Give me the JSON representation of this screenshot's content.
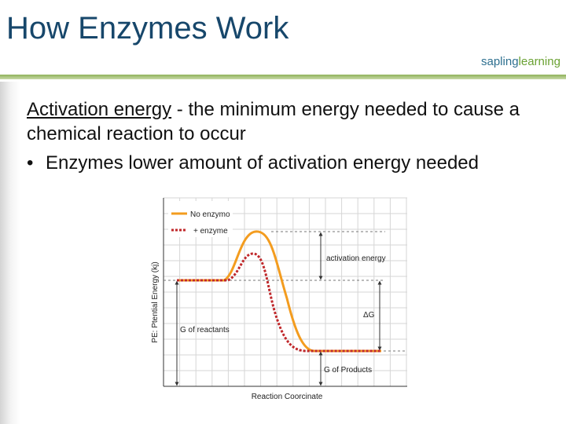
{
  "slide": {
    "title": "How Enzymes Work",
    "logo": {
      "left": "sapling",
      "right": "learning"
    }
  },
  "body": {
    "term": "Activation energy",
    "definition": "  - the minimum energy needed to cause a chemical reaction to occur",
    "bullets": [
      "Enzymes lower amount of activation energy needed"
    ]
  },
  "figure": {
    "legend": [
      "No enzymo",
      "+ enzyme"
    ],
    "y_axis_label": "PE: Ptential Energy (kj)",
    "x_axis_label": "Reaction Coorcinate",
    "annotations": [
      "activation energy",
      "ΔG",
      "G of reactants",
      "G of Products"
    ]
  }
}
